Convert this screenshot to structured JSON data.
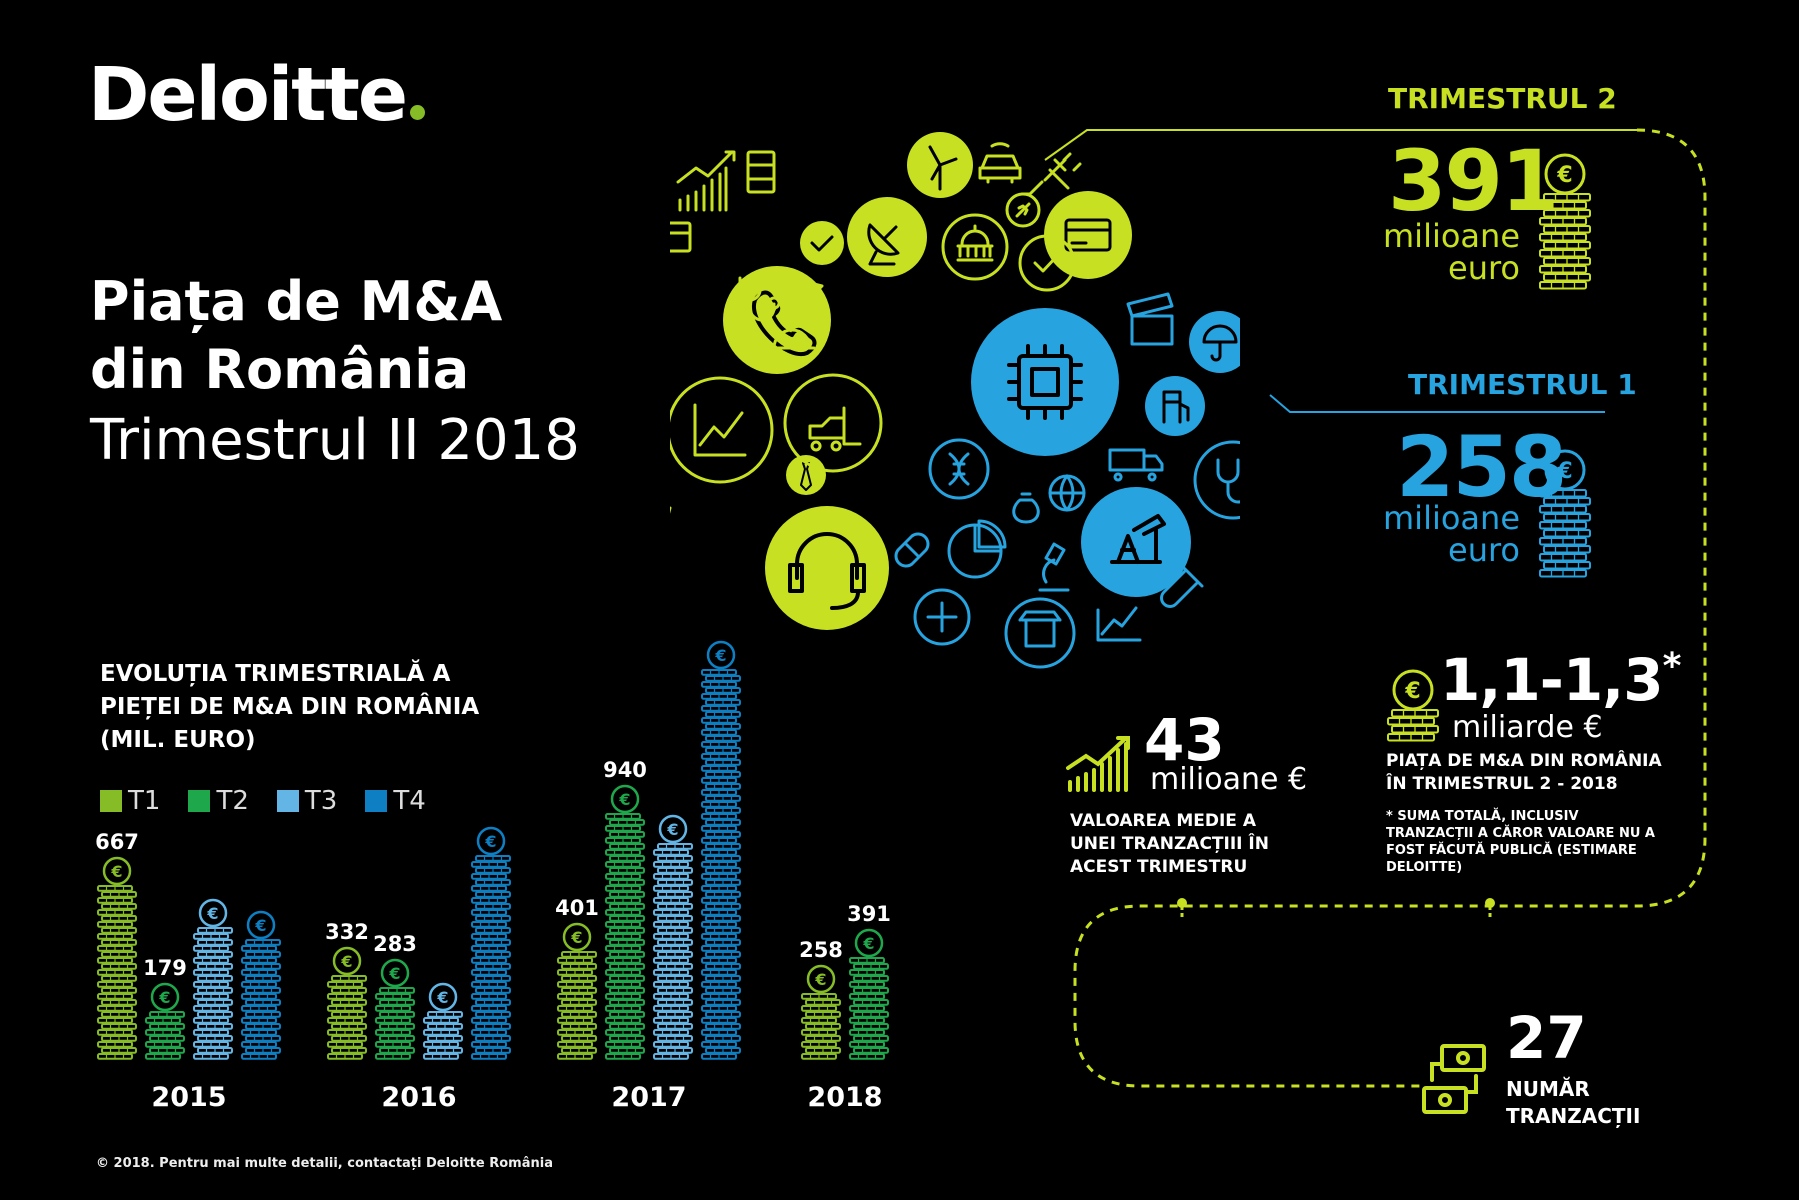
{
  "brand": {
    "name": "Deloitte"
  },
  "title": {
    "line1": "Piața de M&A",
    "line2": "din România",
    "line3": "Trimestrul II 2018"
  },
  "colors": {
    "t1": "#86bc25",
    "t2": "#1ea84b",
    "t3": "#62b5e5",
    "t4": "#0d7fc2",
    "lime": "#c8e022",
    "blue": "#27a3df",
    "bg": "#000000"
  },
  "chart_data": {
    "type": "bar",
    "title": "EVOLUȚIA TRIMESTRIALĂ A PIEȚEI DE M&A DIN ROMÂNIA (MIL. EURO)",
    "title_lines": [
      "EVOLUȚIA TRIMESTRIALĂ A",
      "PIEȚEI DE M&A DIN ROMÂNIA",
      "(MIL. EURO)"
    ],
    "categories": [
      "2015",
      "2016",
      "2017",
      "2018"
    ],
    "series": [
      {
        "name": "T1",
        "values": [
          667,
          332,
          401,
          258
        ]
      },
      {
        "name": "T2",
        "values": [
          179,
          283,
          940,
          391
        ]
      },
      {
        "name": "T3",
        "values": [
          null,
          null,
          null,
          null
        ]
      },
      {
        "name": "T4",
        "values": [
          null,
          null,
          null,
          null
        ]
      }
    ],
    "estimated_unlabeled_values": {
      "T3": [
        500,
        180,
        830,
        null
      ],
      "T4": [
        460,
        790,
        1480,
        null
      ]
    },
    "xlabel": "",
    "ylabel": "",
    "legend_position": "top-left",
    "grid": false
  },
  "q2": {
    "label": "TRIMESTRUL 2",
    "value": "391",
    "unit_line1": "milioane",
    "unit_line2": "euro"
  },
  "q1": {
    "label": "TRIMESTRUL 1",
    "value": "258",
    "unit_line1": "milioane",
    "unit_line2": "euro"
  },
  "total": {
    "value": "1,1-1,3",
    "asterisk": "*",
    "unit": "miliarde €",
    "label_line1": "PIAȚA DE M&A DIN ROMÂNIA",
    "label_line2": "ÎN TRIMESTRUL 2 - 2018",
    "note_lines": [
      "* SUMA TOTALĂ, INCLUSIV",
      "TRANZACȚII A CĂROR VALOARE NU A",
      "FOST FĂCUTĂ PUBLICĂ (ESTIMARE",
      "DELOITTE)"
    ]
  },
  "average": {
    "value": "43",
    "unit": "milioane €",
    "label_lines": [
      "VALOAREA MEDIE A",
      "UNEI TRANZACȚIII ÎN",
      "ACEST TRIMESTRU"
    ]
  },
  "transactions": {
    "value": "27",
    "label_line1": "NUMĂR",
    "label_line2": "TRANZACȚII"
  },
  "icons": [
    "phone-icon",
    "line-chart-icon",
    "forklift-icon",
    "headset-icon",
    "satellite-dish-icon",
    "wind-turbine-icon",
    "car-icon",
    "credit-card-icon",
    "check-icon",
    "building-dome-icon",
    "plug-icon",
    "rocket-icon",
    "shopping-cart-icon",
    "dna-icon",
    "tie-icon",
    "stethoscope-icon",
    "hard-hat-icon",
    "airplane-icon",
    "bar-chart-icon",
    "barrel-icon",
    "microchip-icon",
    "clapperboard-icon",
    "umbrella-icon",
    "fuel-pump-icon",
    "smartwatch-icon",
    "truck-icon",
    "globe-icon",
    "money-bag-icon",
    "pill-icon",
    "pie-chart-icon",
    "microscope-icon",
    "oil-pump-icon",
    "test-tube-icon",
    "plus-icon",
    "shop-icon",
    "euro-icon"
  ],
  "footer": "© 2018. Pentru mai multe detalii, contactați Deloitte România"
}
